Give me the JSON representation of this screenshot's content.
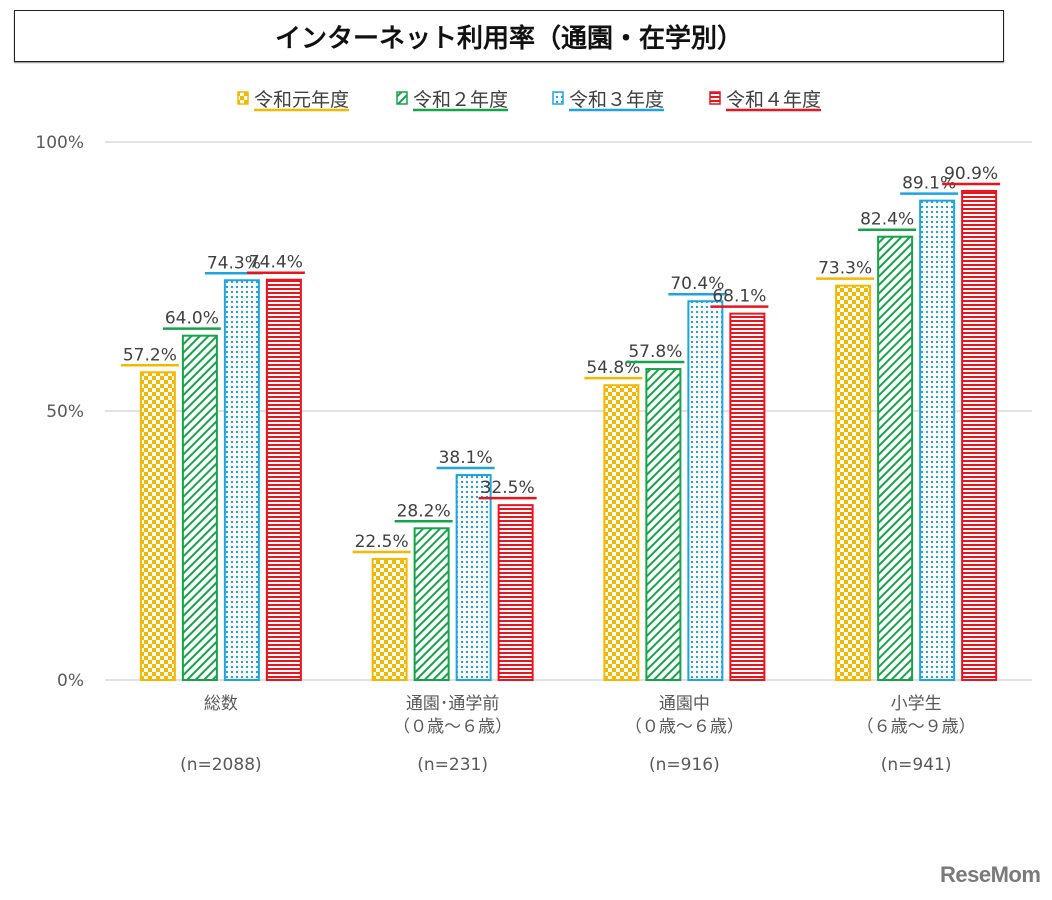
{
  "chart_data": {
    "type": "bar",
    "title": "インターネット利用率（通園・在学別）",
    "xlabel": "",
    "ylabel": "",
    "ylim": [
      0,
      100
    ],
    "yticks": [
      {
        "value": 0,
        "label": "0%"
      },
      {
        "value": 50,
        "label": "50%"
      },
      {
        "value": 100,
        "label": "100%"
      }
    ],
    "grid": true,
    "legend_position": "top-center",
    "categories": [
      {
        "label_lines": [
          "総数"
        ],
        "n": "(n=2088)"
      },
      {
        "label_lines": [
          "通園･通学前",
          "（０歳～６歳）"
        ],
        "n": "(n=231)"
      },
      {
        "label_lines": [
          "通園中",
          "（０歳～６歳）"
        ],
        "n": "(n=916)"
      },
      {
        "label_lines": [
          "小学生",
          "（６歳～９歳）"
        ],
        "n": "(n=941)"
      }
    ],
    "series": [
      {
        "name": "令和元年度",
        "color": "#F5B800",
        "pattern": "checker",
        "values": [
          57.2,
          22.5,
          54.8,
          73.3
        ],
        "labels": [
          "57.2%",
          "22.5%",
          "54.8%",
          "73.3%"
        ]
      },
      {
        "name": "令和２年度",
        "color": "#16A34A",
        "pattern": "diagonal",
        "values": [
          64.0,
          28.2,
          57.8,
          82.4
        ],
        "labels": [
          "64.0%",
          "28.2%",
          "57.8%",
          "82.4%"
        ]
      },
      {
        "name": "令和３年度",
        "color": "#1EA5E0",
        "pattern": "dots",
        "values": [
          74.3,
          38.1,
          70.4,
          89.1
        ],
        "labels": [
          "74.3%",
          "38.1%",
          "70.4%",
          "89.1%"
        ]
      },
      {
        "name": "令和４年度",
        "color": "#E8141E",
        "pattern": "horizontal",
        "values": [
          74.4,
          32.5,
          68.1,
          90.9
        ],
        "labels": [
          "74.4%",
          "32.5%",
          "68.1%",
          "90.9%"
        ]
      }
    ]
  },
  "watermark": "ReseMom"
}
